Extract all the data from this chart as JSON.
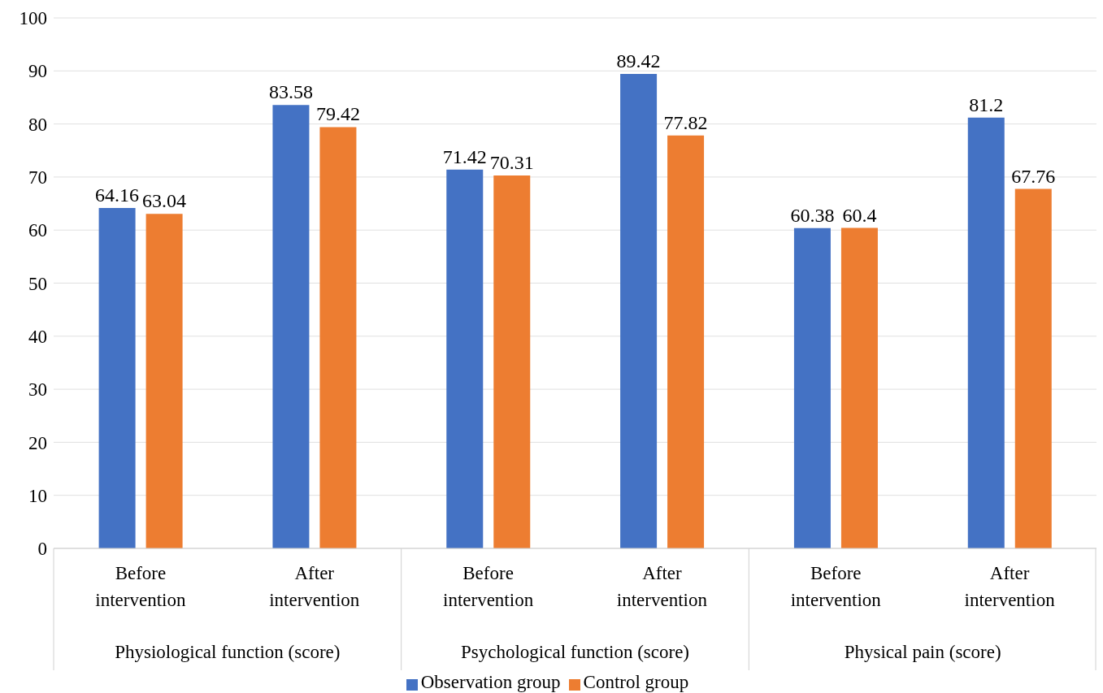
{
  "chart_data": {
    "type": "bar",
    "categories": [
      "Before intervention",
      "After intervention",
      "Before intervention",
      "After intervention",
      "Before intervention",
      "After intervention"
    ],
    "series": [
      {
        "name": "Observation group",
        "color": "#4472c4",
        "values": [
          64.16,
          83.58,
          71.42,
          89.42,
          60.38,
          81.2
        ]
      },
      {
        "name": "Control group",
        "color": "#ed7d31",
        "values": [
          63.04,
          79.42,
          70.31,
          77.82,
          60.4,
          67.76
        ]
      }
    ],
    "annotations": [
      "Physiological function (score)",
      "Psychological function (score)",
      "Physical pain (score)"
    ],
    "ylim": [
      0,
      100
    ],
    "yticks": [
      0,
      10,
      20,
      30,
      40,
      50,
      60,
      70,
      80,
      90,
      100
    ],
    "grid": "y",
    "legend": "bottom",
    "data_labels": true
  }
}
